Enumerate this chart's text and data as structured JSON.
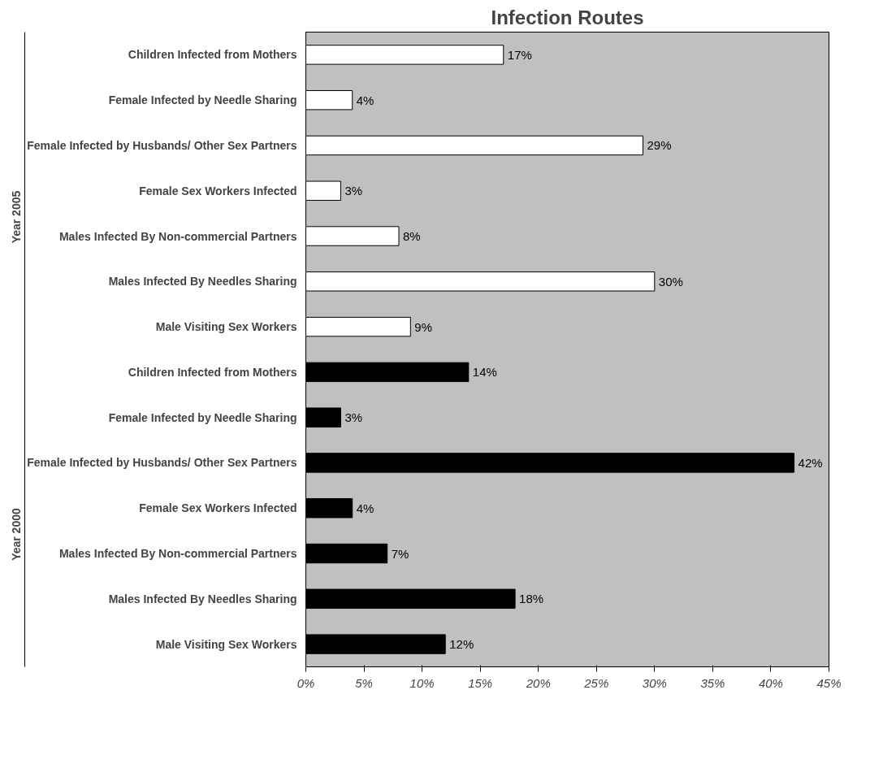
{
  "chart_data": {
    "type": "bar",
    "orientation": "horizontal",
    "title": "Infection Routes",
    "categories": [
      "Children Infected from Mothers",
      "Female Infected by Needle Sharing",
      "Female Infected by Husbands/ Other Sex Partners",
      "Female Sex Workers Infected",
      "Males Infected By Non-commercial Partners",
      "Males Infected By Needles Sharing",
      "Male Visiting Sex Workers",
      "Children Infected from Mothers",
      "Female Infected by Needle Sharing",
      "Female Infected by Husbands/ Other Sex Partners",
      "Female Sex Workers Infected",
      "Males Infected By Non-commercial Partners",
      "Males Infected By Needles Sharing",
      "Male Visiting Sex Workers"
    ],
    "series": [
      {
        "color": "#ffffff",
        "values": [
          17,
          4,
          29,
          3,
          8,
          30,
          9,
          null,
          null,
          null,
          null,
          null,
          null,
          null
        ],
        "value_labels": [
          "17%",
          "4%",
          "29%",
          "3%",
          "8%",
          "30%",
          "9%",
          null,
          null,
          null,
          null,
          null,
          null,
          null
        ]
      },
      {
        "color": "#000000",
        "values": [
          null,
          null,
          null,
          null,
          null,
          null,
          null,
          14,
          3,
          42,
          4,
          7,
          18,
          12
        ],
        "value_labels": [
          null,
          null,
          null,
          null,
          null,
          null,
          null,
          "14%",
          "3%",
          "42%",
          "4%",
          "7%",
          "18%",
          "12%"
        ]
      }
    ],
    "xlim": [
      0,
      45
    ],
    "xticks": [
      {
        "value": 0,
        "label": "0%"
      },
      {
        "value": 5,
        "label": "5%"
      },
      {
        "value": 10,
        "label": "10%"
      },
      {
        "value": 15,
        "label": "15%"
      },
      {
        "value": 20,
        "label": "20%"
      },
      {
        "value": 25,
        "label": "25%"
      },
      {
        "value": 30,
        "label": "30%"
      },
      {
        "value": 35,
        "label": "35%"
      },
      {
        "value": 40,
        "label": "40%"
      },
      {
        "value": 45,
        "label": "45%"
      }
    ],
    "annotations": [
      "Year 2005",
      "Year 2000"
    ],
    "grid": false
  }
}
